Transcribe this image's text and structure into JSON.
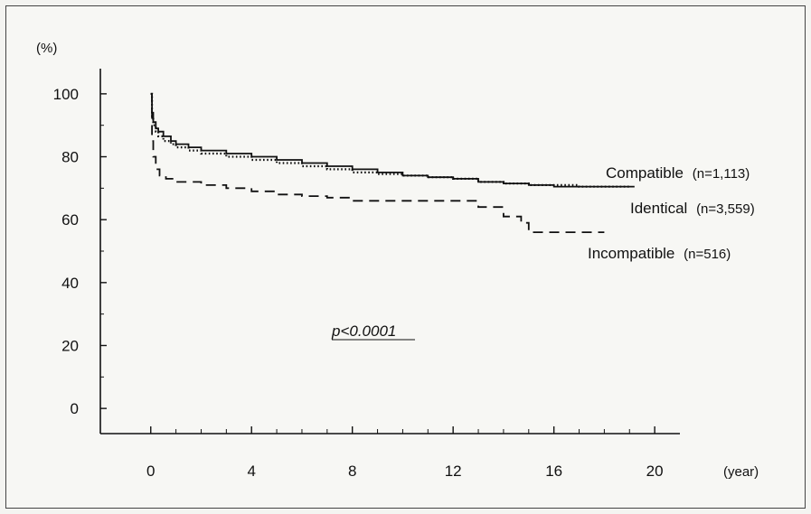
{
  "chart_data": {
    "type": "line",
    "title": "",
    "ylabel_unit": "(%)",
    "xlabel_unit": "(year)",
    "xlim": [
      -2,
      21
    ],
    "ylim": [
      -8,
      108
    ],
    "x_ticks": [
      0,
      4,
      8,
      12,
      16,
      20
    ],
    "y_ticks": [
      0,
      20,
      40,
      60,
      80,
      100
    ],
    "grid": false,
    "annotation": "p<0.0001",
    "series": [
      {
        "label": "Compatible",
        "n_label": "(n=1,113)",
        "color": "#111111",
        "style": "solid",
        "points": [
          [
            0,
            100
          ],
          [
            0.05,
            94
          ],
          [
            0.1,
            91
          ],
          [
            0.2,
            89
          ],
          [
            0.3,
            88
          ],
          [
            0.5,
            86.5
          ],
          [
            0.8,
            85
          ],
          [
            1,
            84
          ],
          [
            1.5,
            83
          ],
          [
            2,
            82
          ],
          [
            3,
            81
          ],
          [
            4,
            80
          ],
          [
            5,
            79
          ],
          [
            6,
            78
          ],
          [
            7,
            77
          ],
          [
            8,
            76
          ],
          [
            9,
            75
          ],
          [
            10,
            74
          ],
          [
            11,
            73.5
          ],
          [
            12,
            73
          ],
          [
            13,
            72
          ],
          [
            14,
            71.5
          ],
          [
            15,
            71
          ],
          [
            16,
            70.5
          ],
          [
            17,
            70.5
          ],
          [
            18,
            70.5
          ],
          [
            19,
            70.5
          ],
          [
            19.2,
            70.5
          ]
        ]
      },
      {
        "label": "Identical",
        "n_label": "(n=3,559)",
        "color": "#111111",
        "style": "dotted",
        "points": [
          [
            0,
            100
          ],
          [
            0.05,
            92
          ],
          [
            0.1,
            90
          ],
          [
            0.2,
            88
          ],
          [
            0.3,
            86.5
          ],
          [
            0.5,
            85
          ],
          [
            0.8,
            84
          ],
          [
            1,
            83
          ],
          [
            1.5,
            82
          ],
          [
            2,
            81
          ],
          [
            3,
            80
          ],
          [
            4,
            79
          ],
          [
            5,
            78
          ],
          [
            6,
            77
          ],
          [
            7,
            76
          ],
          [
            8,
            75
          ],
          [
            9,
            74.5
          ],
          [
            10,
            74
          ],
          [
            11,
            73.5
          ],
          [
            12,
            73
          ],
          [
            13,
            72
          ],
          [
            14,
            71.5
          ],
          [
            15,
            71
          ],
          [
            16,
            71
          ],
          [
            17,
            70.5
          ],
          [
            18,
            70.5
          ],
          [
            19,
            70.5
          ]
        ]
      },
      {
        "label": "Incompatible",
        "n_label": "(n=516)",
        "color": "#111111",
        "style": "dashed",
        "points": [
          [
            0,
            100
          ],
          [
            0.05,
            85
          ],
          [
            0.1,
            80
          ],
          [
            0.2,
            76
          ],
          [
            0.35,
            74
          ],
          [
            0.6,
            73
          ],
          [
            1,
            72
          ],
          [
            2,
            71
          ],
          [
            3,
            70
          ],
          [
            4,
            69
          ],
          [
            5,
            68
          ],
          [
            6,
            67.5
          ],
          [
            7,
            67
          ],
          [
            8,
            66
          ],
          [
            9,
            66
          ],
          [
            10,
            66
          ],
          [
            11,
            66
          ],
          [
            12,
            66
          ],
          [
            13,
            64
          ],
          [
            14,
            61
          ],
          [
            14.7,
            59
          ],
          [
            15,
            56
          ],
          [
            16,
            56
          ],
          [
            17,
            56
          ],
          [
            18,
            56
          ]
        ]
      }
    ]
  }
}
